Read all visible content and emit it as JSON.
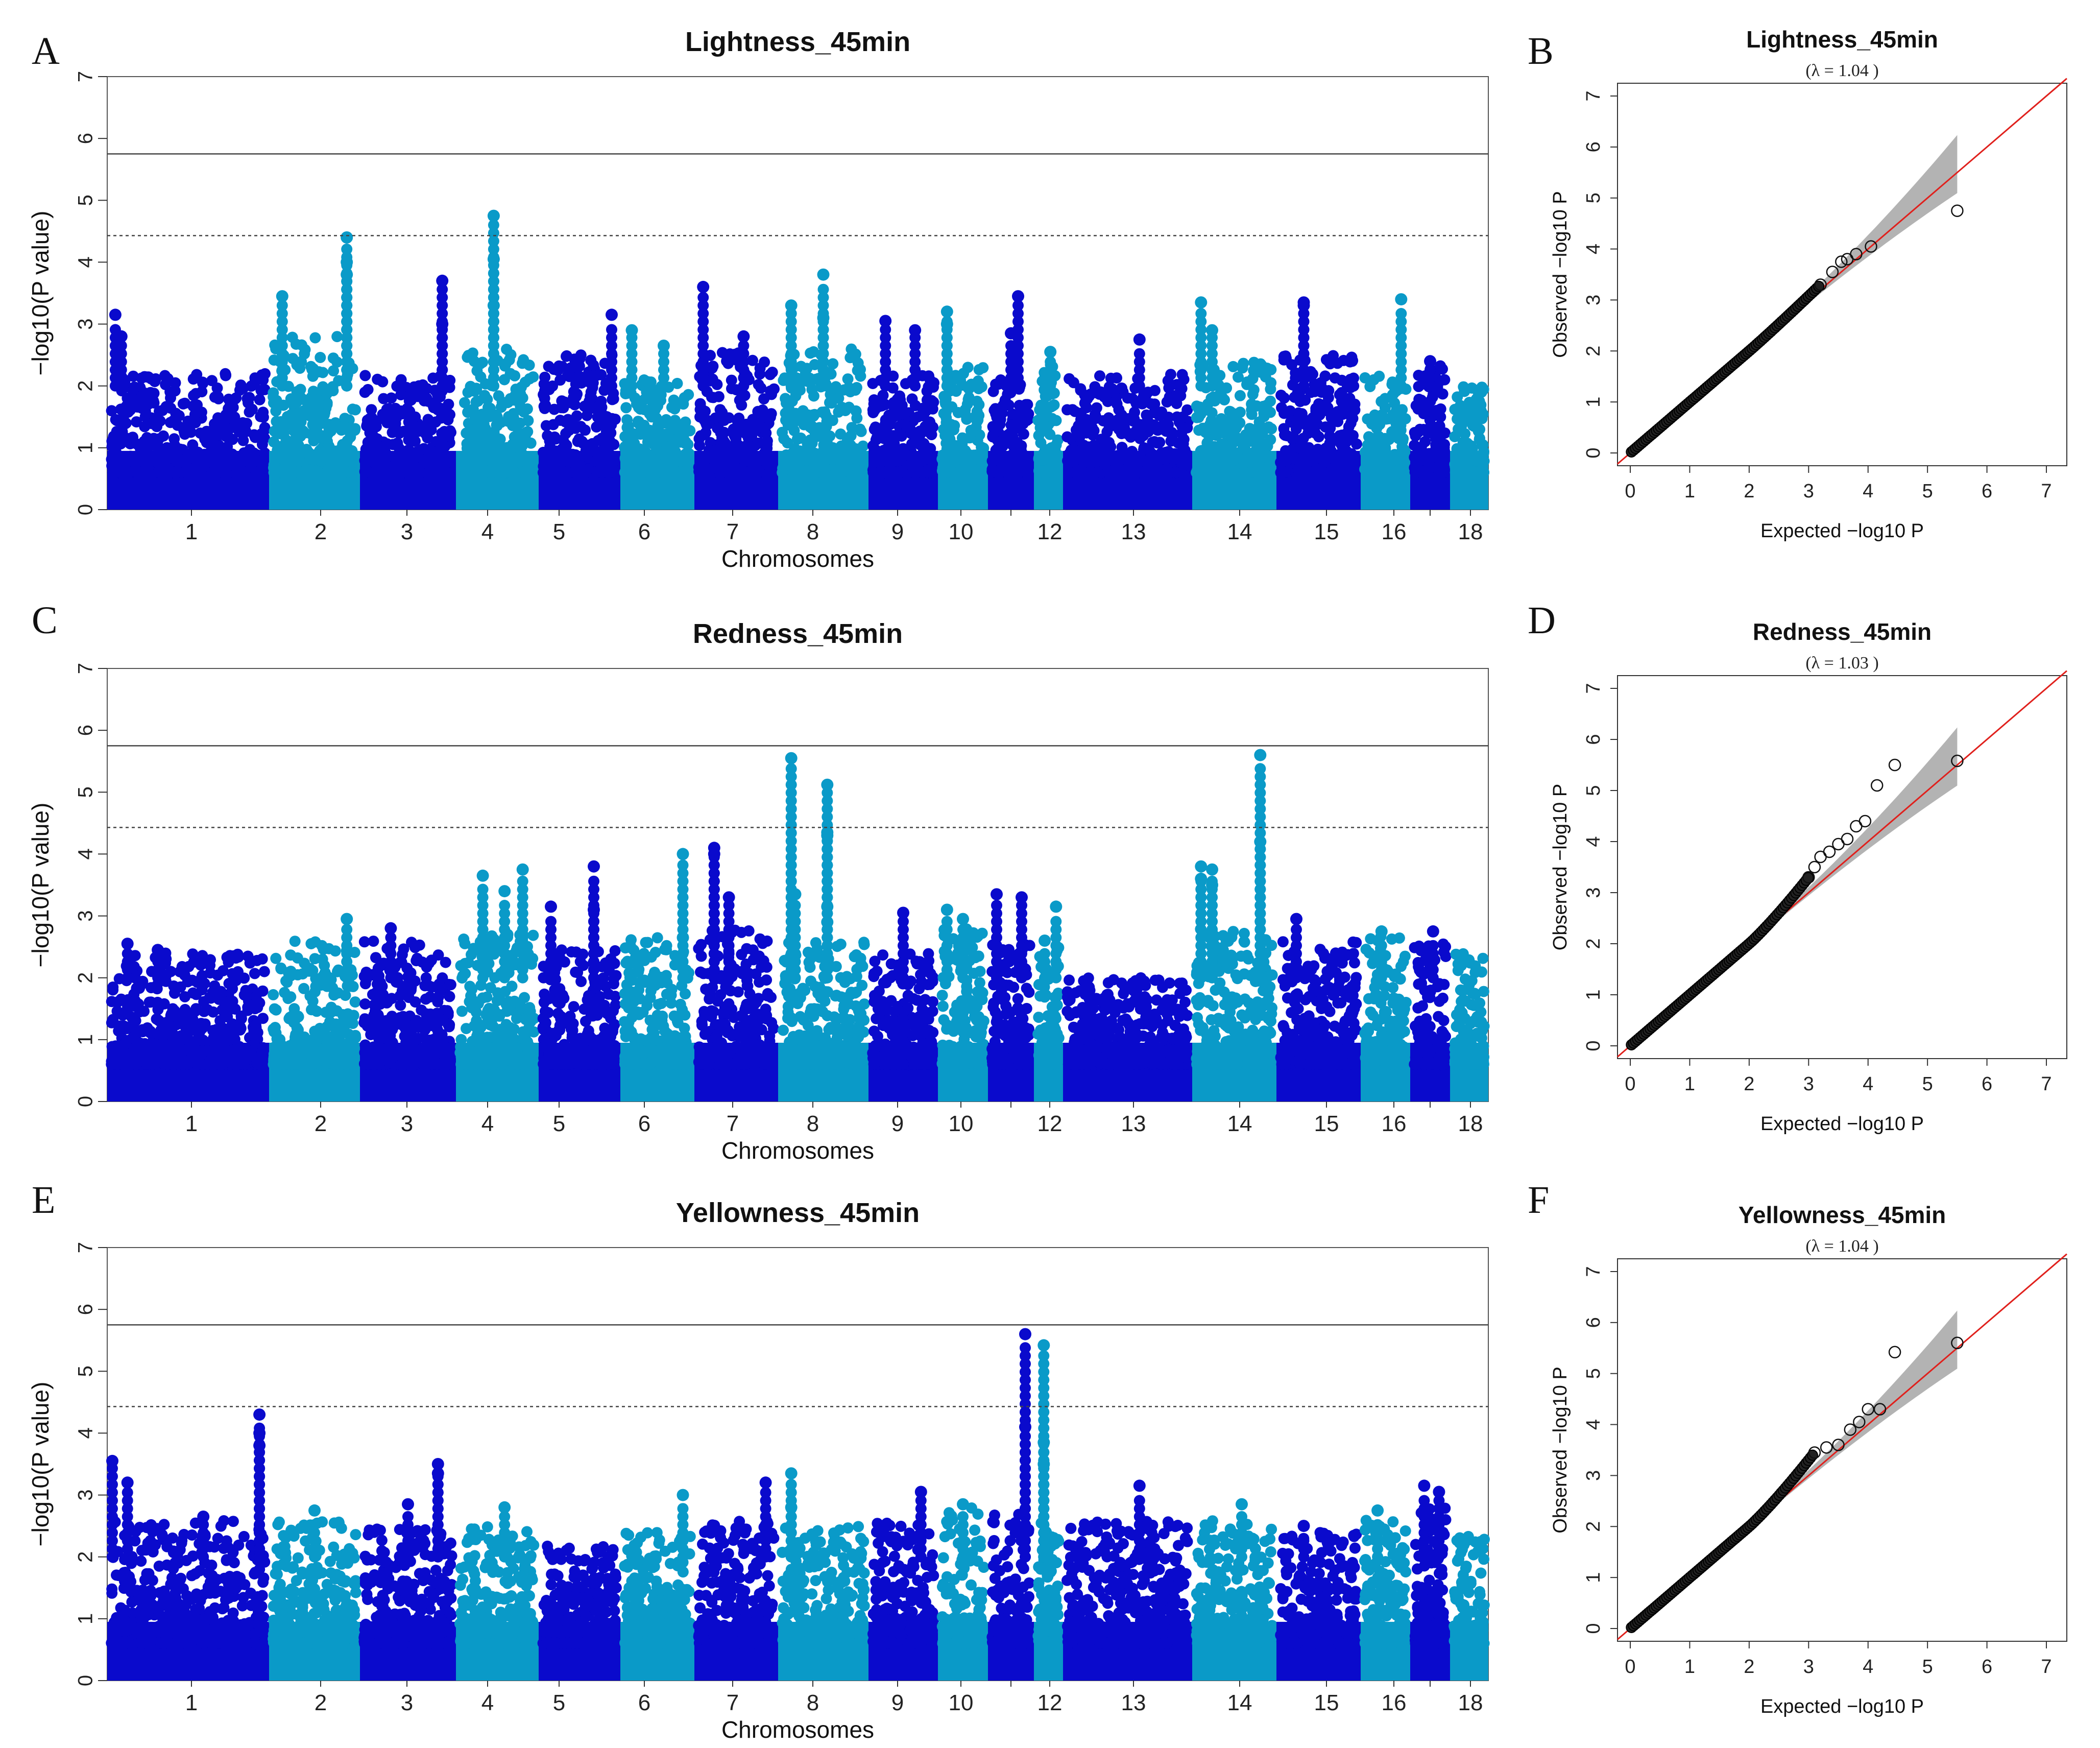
{
  "colors": {
    "dark_blue": "#0a0acc",
    "light_blue": "#0a9ac8",
    "qq_line": "#e0201c",
    "qq_band": "#b3b3b3"
  },
  "chart_data": [
    {
      "panel": "A",
      "type": "scatter",
      "subtype": "manhattan",
      "title": "Lightness_45min",
      "xlabel": "Chromosomes",
      "ylabel": "−log10(P value)",
      "ylim": [
        0,
        7
      ],
      "yticks": [
        0,
        1,
        2,
        3,
        4,
        5,
        6,
        7
      ],
      "chromosomes": [
        "1",
        "2",
        "3",
        "4",
        "5",
        "6",
        "7",
        "8",
        "9",
        "10",
        "11",
        "12",
        "13",
        "14",
        "15",
        "16",
        "17",
        "18"
      ],
      "chromosome_tick_labels": [
        "1",
        "2",
        "3",
        "4",
        "5",
        "6",
        "7",
        "8",
        "9",
        "10",
        "",
        "12",
        "13",
        "14",
        "15",
        "16",
        "",
        "18"
      ],
      "thresholds": {
        "solid": 5.75,
        "dashed": 4.43
      },
      "baseline_max_per_chromosome": [
        2.2,
        2.8,
        2.2,
        2.6,
        2.5,
        2.1,
        2.6,
        2.6,
        2.2,
        2.3,
        2.1,
        2.4,
        2.2,
        2.4,
        2.5,
        2.2,
        2.4,
        2.0
      ],
      "top_hits": [
        {
          "chr": "1",
          "pos": 0.02,
          "p": 3.15
        },
        {
          "chr": "1",
          "pos": 0.06,
          "p": 2.8
        },
        {
          "chr": "2",
          "pos": 0.1,
          "p": 3.45
        },
        {
          "chr": "2",
          "pos": 0.9,
          "p": 4.4
        },
        {
          "chr": "2",
          "pos": 0.9,
          "p": 4.0
        },
        {
          "chr": "2",
          "pos": 0.9,
          "p": 3.8
        },
        {
          "chr": "3",
          "pos": 0.9,
          "p": 3.7
        },
        {
          "chr": "3",
          "pos": 0.9,
          "p": 3.0
        },
        {
          "chr": "4",
          "pos": 0.45,
          "p": 4.75
        },
        {
          "chr": "4",
          "pos": 0.45,
          "p": 4.05
        },
        {
          "chr": "4",
          "pos": 0.45,
          "p": 3.3
        },
        {
          "chr": "5",
          "pos": 0.95,
          "p": 3.15
        },
        {
          "chr": "6",
          "pos": 0.1,
          "p": 2.9
        },
        {
          "chr": "6",
          "pos": 0.6,
          "p": 2.65
        },
        {
          "chr": "7",
          "pos": 0.05,
          "p": 3.6
        },
        {
          "chr": "7",
          "pos": 0.6,
          "p": 2.8
        },
        {
          "chr": "8",
          "pos": 0.1,
          "p": 3.3
        },
        {
          "chr": "8",
          "pos": 0.5,
          "p": 3.8
        },
        {
          "chr": "8",
          "pos": 0.5,
          "p": 3.1
        },
        {
          "chr": "9",
          "pos": 0.2,
          "p": 3.05
        },
        {
          "chr": "9",
          "pos": 0.7,
          "p": 2.9
        },
        {
          "chr": "10",
          "pos": 0.1,
          "p": 3.2
        },
        {
          "chr": "10",
          "pos": 0.1,
          "p": 3.0
        },
        {
          "chr": "11",
          "pos": 0.7,
          "p": 3.45
        },
        {
          "chr": "11",
          "pos": 0.5,
          "p": 2.85
        },
        {
          "chr": "12",
          "pos": 0.6,
          "p": 2.55
        },
        {
          "chr": "13",
          "pos": 0.6,
          "p": 2.75
        },
        {
          "chr": "14",
          "pos": 0.05,
          "p": 3.35
        },
        {
          "chr": "14",
          "pos": 0.2,
          "p": 2.9
        },
        {
          "chr": "15",
          "pos": 0.3,
          "p": 3.35
        },
        {
          "chr": "15",
          "pos": 0.3,
          "p": 3.3
        },
        {
          "chr": "16",
          "pos": 0.9,
          "p": 3.4
        },
        {
          "chr": "17",
          "pos": 0.5,
          "p": 2.4
        }
      ]
    },
    {
      "panel": "B",
      "type": "scatter",
      "subtype": "qq",
      "title": "Lightness_45min",
      "lambda_text": "(λ =  1.04 )",
      "xlabel": "Expected  −log10 P",
      "ylabel": "Observed  −log10 P",
      "xlim": [
        0,
        7
      ],
      "ylim": [
        0,
        7
      ],
      "xticks": [
        0,
        1,
        2,
        3,
        4,
        5,
        6,
        7
      ],
      "yticks": [
        0,
        1,
        2,
        3,
        4,
        5,
        6,
        7
      ],
      "expected_max": 5.5,
      "observed_tail": [
        [
          3.2,
          3.3
        ],
        [
          3.4,
          3.55
        ],
        [
          3.55,
          3.75
        ],
        [
          3.65,
          3.8
        ],
        [
          3.8,
          3.9
        ],
        [
          4.05,
          4.05
        ],
        [
          5.5,
          4.75
        ]
      ]
    },
    {
      "panel": "C",
      "type": "scatter",
      "subtype": "manhattan",
      "title": "Redness_45min",
      "xlabel": "Chromosomes",
      "ylabel": "−log10(P value)",
      "ylim": [
        0,
        7
      ],
      "yticks": [
        0,
        1,
        2,
        3,
        4,
        5,
        6,
        7
      ],
      "chromosomes": [
        "1",
        "2",
        "3",
        "4",
        "5",
        "6",
        "7",
        "8",
        "9",
        "10",
        "11",
        "12",
        "13",
        "14",
        "15",
        "16",
        "17",
        "18"
      ],
      "chromosome_tick_labels": [
        "1",
        "2",
        "3",
        "4",
        "5",
        "6",
        "7",
        "8",
        "9",
        "10",
        "",
        "12",
        "13",
        "14",
        "15",
        "16",
        "",
        "18"
      ],
      "thresholds": {
        "solid": 5.75,
        "dashed": 4.43
      },
      "baseline_max_per_chromosome": [
        2.4,
        2.6,
        2.6,
        2.7,
        2.5,
        2.7,
        2.8,
        2.7,
        2.4,
        2.8,
        2.6,
        2.5,
        2.0,
        2.8,
        2.6,
        2.7,
        2.6,
        2.4
      ],
      "top_hits": [
        {
          "chr": "1",
          "pos": 0.1,
          "p": 2.55
        },
        {
          "chr": "1",
          "pos": 0.3,
          "p": 2.45
        },
        {
          "chr": "2",
          "pos": 0.9,
          "p": 2.95
        },
        {
          "chr": "3",
          "pos": 0.3,
          "p": 2.8
        },
        {
          "chr": "4",
          "pos": 0.3,
          "p": 3.65
        },
        {
          "chr": "4",
          "pos": 0.6,
          "p": 3.4
        },
        {
          "chr": "4",
          "pos": 0.85,
          "p": 3.75
        },
        {
          "chr": "5",
          "pos": 0.1,
          "p": 3.15
        },
        {
          "chr": "5",
          "pos": 0.7,
          "p": 3.8
        },
        {
          "chr": "5",
          "pos": 0.7,
          "p": 3.1
        },
        {
          "chr": "6",
          "pos": 0.9,
          "p": 2.65
        },
        {
          "chr": "6",
          "pos": 0.9,
          "p": 4.0
        },
        {
          "chr": "7",
          "pos": 0.2,
          "p": 4.1
        },
        {
          "chr": "7",
          "pos": 0.2,
          "p": 4.0
        },
        {
          "chr": "7",
          "pos": 0.4,
          "p": 3.3
        },
        {
          "chr": "8",
          "pos": 0.1,
          "p": 5.55
        },
        {
          "chr": "8",
          "pos": 0.15,
          "p": 3.35
        },
        {
          "chr": "8",
          "pos": 0.55,
          "p": 5.12
        },
        {
          "chr": "8",
          "pos": 0.55,
          "p": 4.35
        },
        {
          "chr": "8",
          "pos": 0.55,
          "p": 4.3
        },
        {
          "chr": "8",
          "pos": 0.55,
          "p": 3.15
        },
        {
          "chr": "8",
          "pos": 0.55,
          "p": 2.9
        },
        {
          "chr": "9",
          "pos": 0.5,
          "p": 3.05
        },
        {
          "chr": "10",
          "pos": 0.1,
          "p": 3.1
        },
        {
          "chr": "10",
          "pos": 0.5,
          "p": 2.95
        },
        {
          "chr": "11",
          "pos": 0.1,
          "p": 3.35
        },
        {
          "chr": "11",
          "pos": 0.8,
          "p": 3.3
        },
        {
          "chr": "12",
          "pos": 0.3,
          "p": 2.6
        },
        {
          "chr": "12",
          "pos": 0.9,
          "p": 3.15
        },
        {
          "chr": "14",
          "pos": 0.05,
          "p": 3.8
        },
        {
          "chr": "14",
          "pos": 0.05,
          "p": 3.6
        },
        {
          "chr": "14",
          "pos": 0.2,
          "p": 3.75
        },
        {
          "chr": "14",
          "pos": 0.2,
          "p": 3.5
        },
        {
          "chr": "14",
          "pos": 0.85,
          "p": 5.6
        },
        {
          "chr": "14",
          "pos": 0.85,
          "p": 4.2
        },
        {
          "chr": "15",
          "pos": 0.2,
          "p": 2.95
        },
        {
          "chr": "16",
          "pos": 0.4,
          "p": 2.75
        },
        {
          "chr": "17",
          "pos": 0.6,
          "p": 2.75
        }
      ]
    },
    {
      "panel": "D",
      "type": "scatter",
      "subtype": "qq",
      "title": "Redness_45min",
      "lambda_text": "(λ =  1.03 )",
      "xlabel": "Expected  −log10 P",
      "ylabel": "Observed  −log10 P",
      "xlim": [
        0,
        7
      ],
      "ylim": [
        0,
        7
      ],
      "xticks": [
        0,
        1,
        2,
        3,
        4,
        5,
        6,
        7
      ],
      "yticks": [
        0,
        1,
        2,
        3,
        4,
        5,
        6,
        7
      ],
      "expected_max": 5.5,
      "observed_tail": [
        [
          3.0,
          3.3
        ],
        [
          3.1,
          3.5
        ],
        [
          3.2,
          3.7
        ],
        [
          3.35,
          3.8
        ],
        [
          3.5,
          3.95
        ],
        [
          3.65,
          4.05
        ],
        [
          3.8,
          4.3
        ],
        [
          3.95,
          4.4
        ],
        [
          4.15,
          5.1
        ],
        [
          4.45,
          5.5
        ],
        [
          5.5,
          5.58
        ]
      ]
    },
    {
      "panel": "E",
      "type": "scatter",
      "subtype": "manhattan",
      "title": "Yellowness_45min",
      "xlabel": "Chromosomes",
      "ylabel": "−log10(P value)",
      "ylim": [
        0,
        7
      ],
      "yticks": [
        0,
        1,
        2,
        3,
        4,
        5,
        6,
        7
      ],
      "chromosomes": [
        "1",
        "2",
        "3",
        "4",
        "5",
        "6",
        "7",
        "8",
        "9",
        "10",
        "11",
        "12",
        "13",
        "14",
        "15",
        "16",
        "17",
        "18"
      ],
      "chromosome_tick_labels": [
        "1",
        "2",
        "3",
        "4",
        "5",
        "6",
        "7",
        "8",
        "9",
        "10",
        "",
        "12",
        "13",
        "14",
        "15",
        "16",
        "",
        "18"
      ],
      "thresholds": {
        "solid": 5.75,
        "dashed": 4.43
      },
      "baseline_max_per_chromosome": [
        2.6,
        2.6,
        2.5,
        2.5,
        2.2,
        2.4,
        2.6,
        2.5,
        2.6,
        2.8,
        2.7,
        2.6,
        2.6,
        2.6,
        2.4,
        2.6,
        2.8,
        2.4
      ],
      "top_hits": [
        {
          "chr": "1",
          "pos": 0.0,
          "p": 3.55
        },
        {
          "chr": "1",
          "pos": 0.1,
          "p": 3.2
        },
        {
          "chr": "1",
          "pos": 0.6,
          "p": 2.65
        },
        {
          "chr": "1",
          "pos": 0.97,
          "p": 4.3
        },
        {
          "chr": "1",
          "pos": 0.97,
          "p": 4.0
        },
        {
          "chr": "1",
          "pos": 0.97,
          "p": 3.8
        },
        {
          "chr": "2",
          "pos": 0.5,
          "p": 2.75
        },
        {
          "chr": "3",
          "pos": 0.5,
          "p": 2.85
        },
        {
          "chr": "3",
          "pos": 0.85,
          "p": 3.5
        },
        {
          "chr": "3",
          "pos": 0.85,
          "p": 3.35
        },
        {
          "chr": "4",
          "pos": 0.6,
          "p": 2.8
        },
        {
          "chr": "6",
          "pos": 0.9,
          "p": 3.0
        },
        {
          "chr": "7",
          "pos": 0.9,
          "p": 3.2
        },
        {
          "chr": "8",
          "pos": 0.1,
          "p": 3.35
        },
        {
          "chr": "8",
          "pos": 0.1,
          "p": 2.8
        },
        {
          "chr": "9",
          "pos": 0.8,
          "p": 3.05
        },
        {
          "chr": "10",
          "pos": 0.5,
          "p": 2.85
        },
        {
          "chr": "11",
          "pos": 0.9,
          "p": 5.6
        },
        {
          "chr": "11",
          "pos": 0.9,
          "p": 4.1
        },
        {
          "chr": "12",
          "pos": 0.25,
          "p": 5.42
        },
        {
          "chr": "12",
          "pos": 0.25,
          "p": 3.85
        },
        {
          "chr": "12",
          "pos": 0.25,
          "p": 3.5
        },
        {
          "chr": "13",
          "pos": 0.6,
          "p": 3.15
        },
        {
          "chr": "14",
          "pos": 0.6,
          "p": 2.85
        },
        {
          "chr": "15",
          "pos": 0.3,
          "p": 2.5
        },
        {
          "chr": "16",
          "pos": 0.3,
          "p": 2.75
        },
        {
          "chr": "17",
          "pos": 0.3,
          "p": 3.15
        },
        {
          "chr": "17",
          "pos": 0.8,
          "p": 3.05
        }
      ]
    },
    {
      "panel": "F",
      "type": "scatter",
      "subtype": "qq",
      "title": "Yellowness_45min",
      "lambda_text": "(λ =  1.04 )",
      "xlabel": "Expected  −log10 P",
      "ylabel": "Observed  −log10 P",
      "xlim": [
        0,
        7
      ],
      "ylim": [
        0,
        7
      ],
      "xticks": [
        0,
        1,
        2,
        3,
        4,
        5,
        6,
        7
      ],
      "yticks": [
        0,
        1,
        2,
        3,
        4,
        5,
        6,
        7
      ],
      "expected_max": 5.5,
      "observed_tail": [
        [
          3.1,
          3.45
        ],
        [
          3.3,
          3.55
        ],
        [
          3.5,
          3.6
        ],
        [
          3.7,
          3.9
        ],
        [
          3.85,
          4.05
        ],
        [
          4.0,
          4.3
        ],
        [
          4.2,
          4.3
        ],
        [
          4.45,
          5.42
        ],
        [
          5.5,
          5.6
        ]
      ]
    }
  ]
}
